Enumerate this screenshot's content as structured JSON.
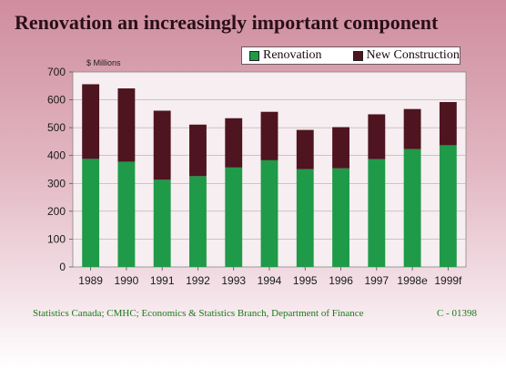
{
  "title": "Renovation an increasingly important component",
  "source": "Statistics Canada; CMHC; Economics & Statistics Branch, Department of Finance",
  "code": "C - 01398",
  "colors": {
    "renovation": "#1f9a48",
    "new_construction": "#4e1420"
  },
  "chart_data": {
    "type": "bar",
    "stacked": true,
    "title": "Renovation an increasingly important component",
    "unit_label": "$ Millions",
    "categories": [
      "1989",
      "1990",
      "1991",
      "1992",
      "1993",
      "1994",
      "1995",
      "1996",
      "1997",
      "1998e",
      "1999f"
    ],
    "series": [
      {
        "name": "Renovation",
        "values": [
          388,
          378,
          313,
          326,
          357,
          383,
          351,
          354,
          387,
          423,
          437
        ]
      },
      {
        "name": "New Construction",
        "values": [
          268,
          263,
          248,
          185,
          177,
          174,
          141,
          148,
          161,
          144,
          155
        ]
      }
    ],
    "ylim": [
      0,
      700
    ],
    "yticks": [
      0,
      100,
      200,
      300,
      400,
      500,
      600,
      700
    ],
    "grid": true,
    "legend": "top-right"
  }
}
